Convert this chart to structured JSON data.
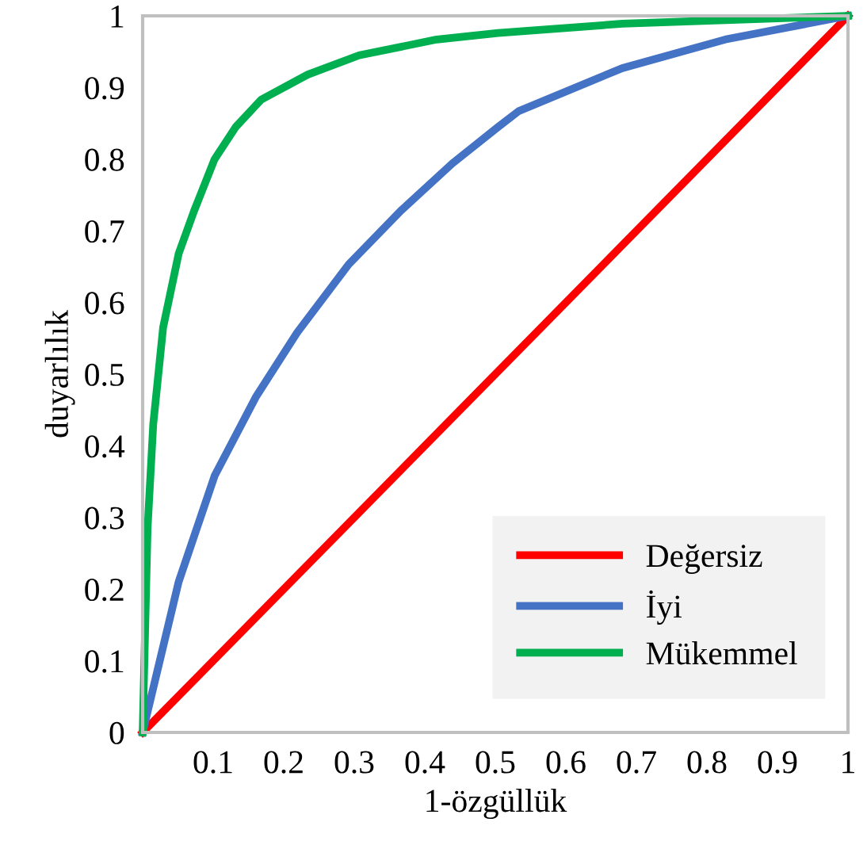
{
  "chart_data": {
    "type": "line",
    "xlabel": "1-özgüllük",
    "ylabel": "duyarlılık",
    "xlim": [
      0,
      1
    ],
    "ylim": [
      0,
      1
    ],
    "xticks": [
      0.1,
      0.2,
      0.3,
      0.4,
      0.5,
      0.6,
      0.7,
      0.8,
      0.9,
      1
    ],
    "yticks": [
      0,
      0.1,
      0.2,
      0.3,
      0.4,
      0.5,
      0.6,
      0.7,
      0.8,
      0.9,
      1
    ],
    "grid": false,
    "legend": "bottom right",
    "marker": "none",
    "line_style": "solid",
    "series": [
      {
        "name": "Değersiz",
        "color": "#ff0000",
        "x": [
          0,
          1
        ],
        "values": [
          0,
          1
        ]
      },
      {
        "name": "İyi",
        "color": "#4472c4",
        "x": [
          0,
          0.051,
          0.102,
          0.161,
          0.219,
          0.292,
          0.366,
          0.439,
          0.504,
          0.533,
          0.68,
          0.826,
          1
        ],
        "values": [
          0,
          0.21,
          0.358,
          0.469,
          0.558,
          0.653,
          0.728,
          0.794,
          0.845,
          0.867,
          0.927,
          0.967,
          1
        ]
      },
      {
        "name": "Mükemmel",
        "color": "#00b050",
        "x": [
          0,
          0.007,
          0.015,
          0.029,
          0.051,
          0.073,
          0.102,
          0.132,
          0.168,
          0.234,
          0.307,
          0.417,
          0.504,
          0.68,
          1
        ],
        "values": [
          0,
          0.285,
          0.43,
          0.565,
          0.668,
          0.728,
          0.8,
          0.845,
          0.883,
          0.918,
          0.945,
          0.967,
          0.976,
          0.989,
          1
        ]
      }
    ]
  }
}
